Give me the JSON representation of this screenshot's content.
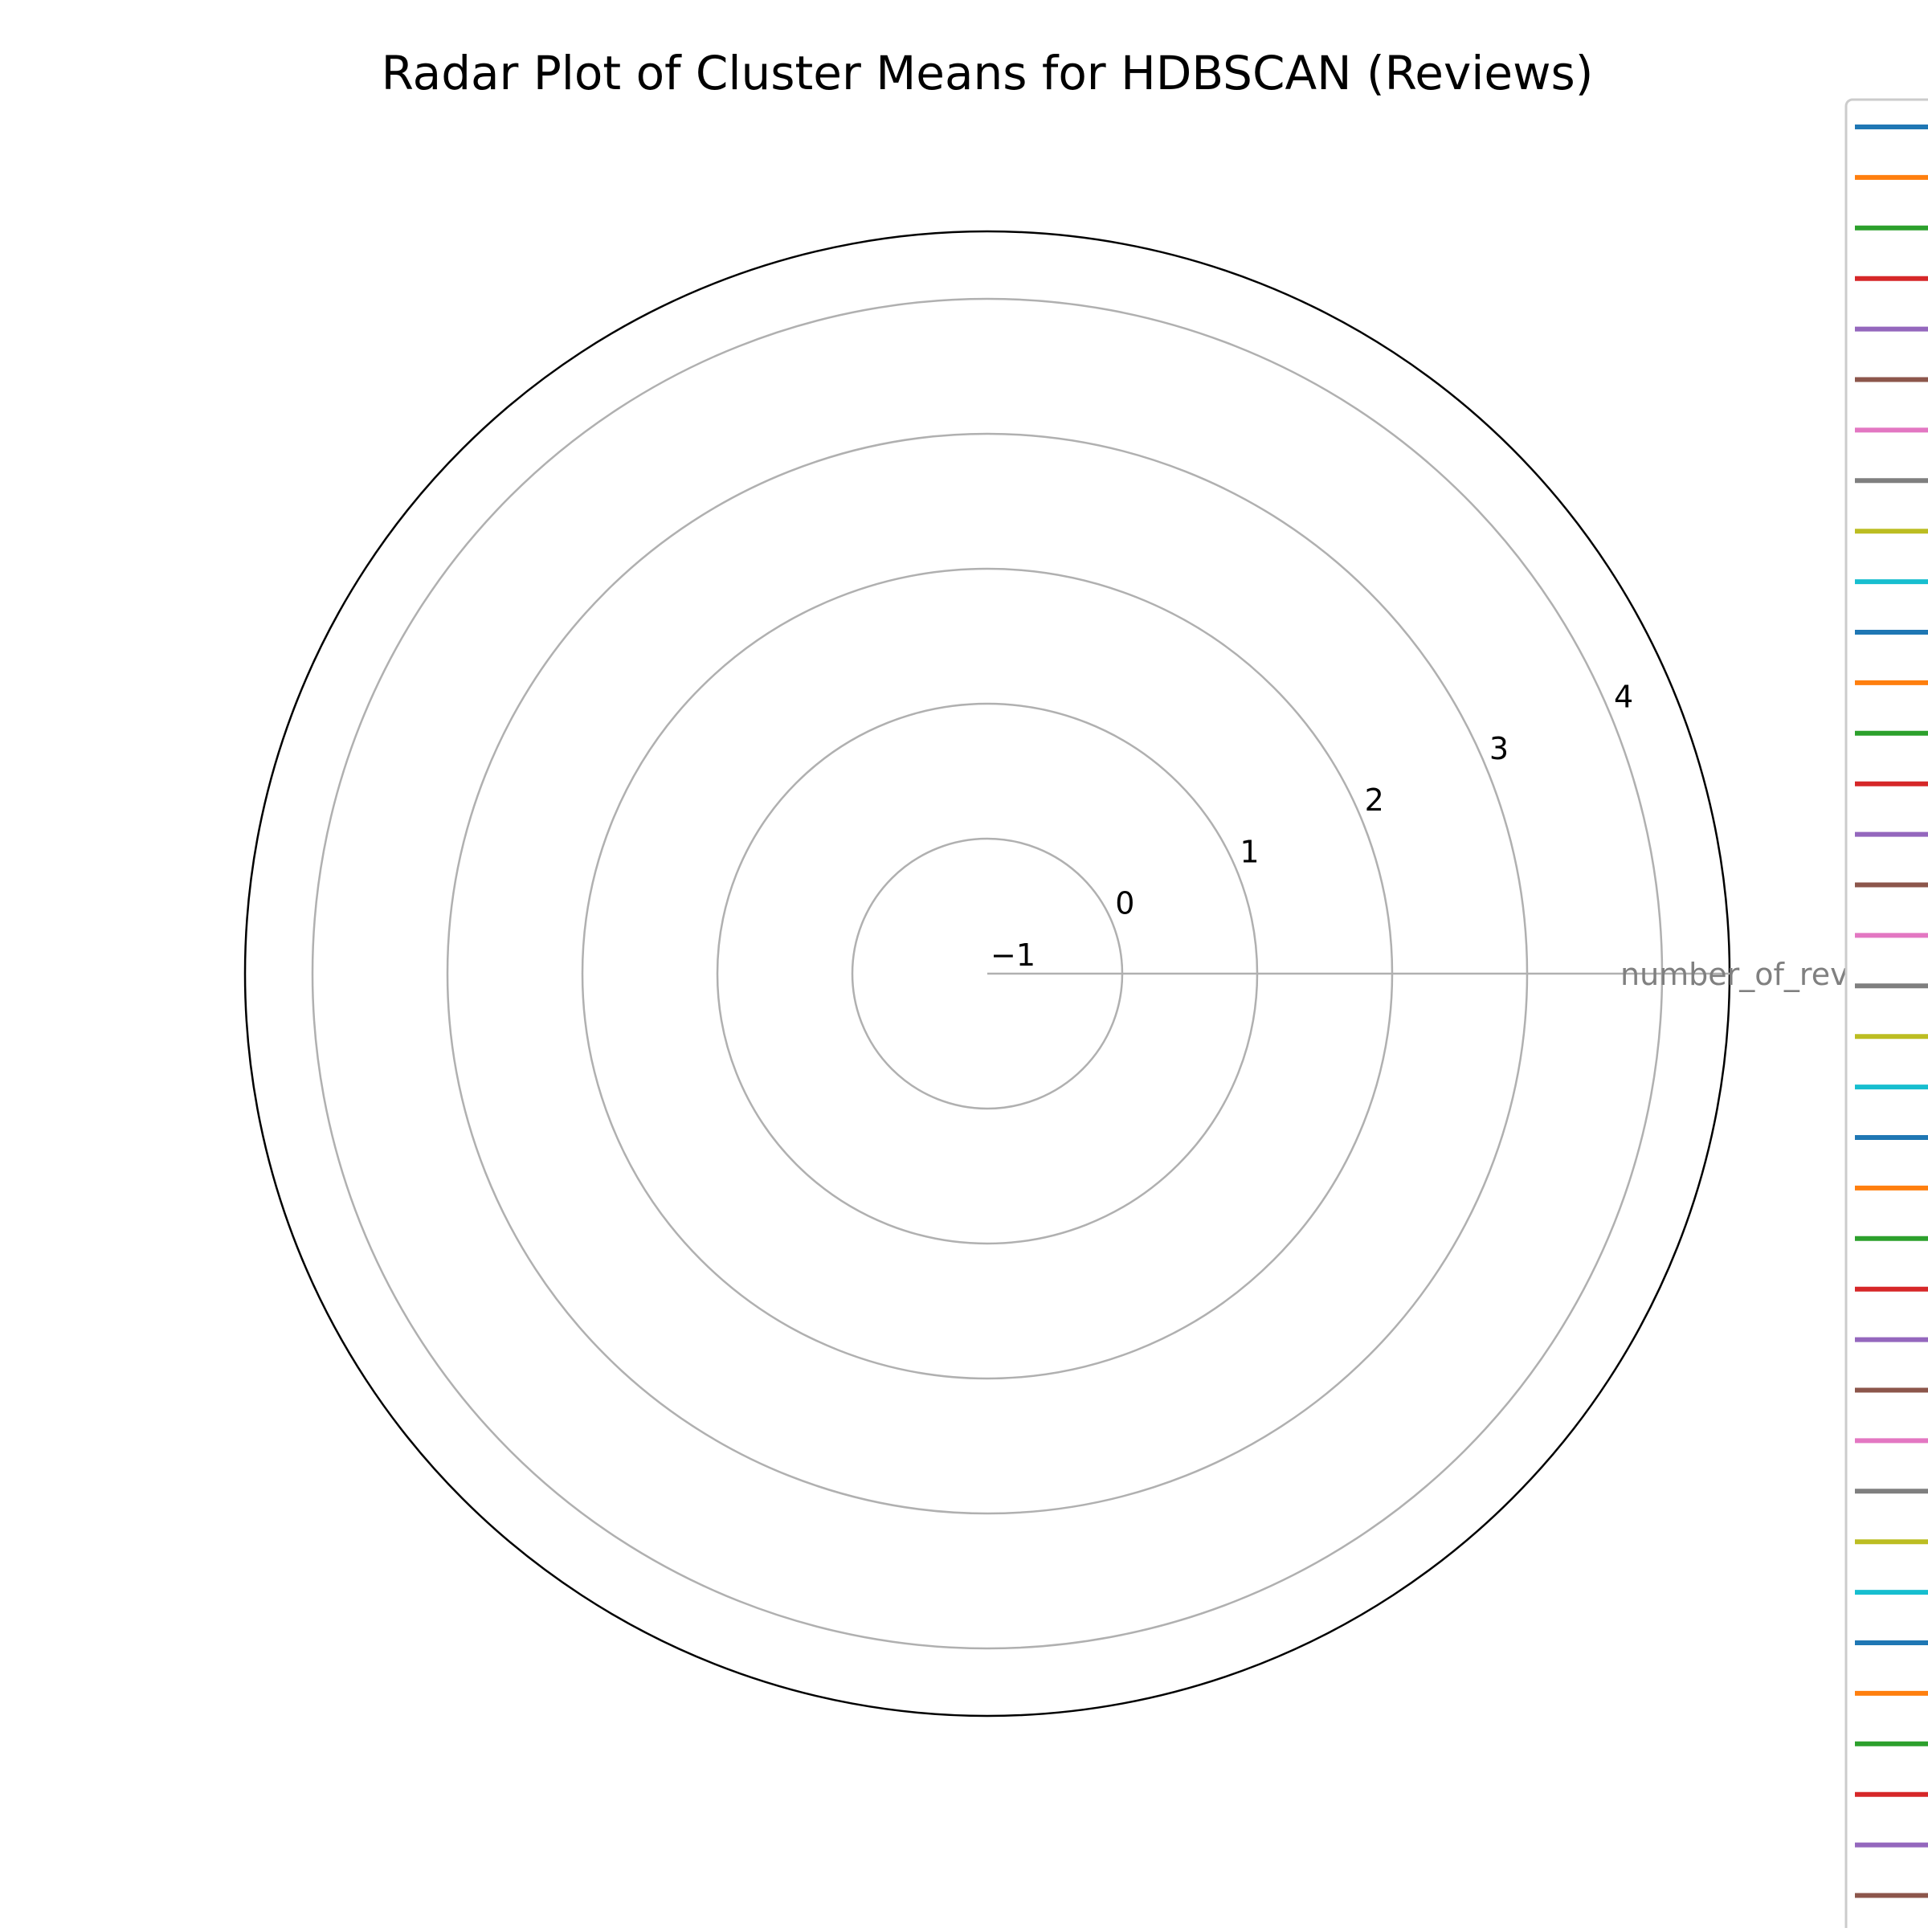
{
  "chart_data": {
    "type": "radar",
    "title": "Radar Plot of Cluster Means for HDBSCAN (Reviews)",
    "axes": [
      "number_of_reviews"
    ],
    "radial_ticks": [
      -1,
      0,
      1,
      2,
      3,
      4
    ],
    "rlim": [
      -1,
      4.5
    ],
    "grid": true,
    "legend_placement": "right, cut off at edge",
    "legend_series_count": 36,
    "palette": [
      "#1f77b4",
      "#ff7f0e",
      "#2ca02c",
      "#d62728",
      "#9467bd",
      "#8c564b",
      "#e377c2",
      "#7f7f7f",
      "#bcbd22",
      "#17becf"
    ],
    "colors": {
      "grid": "#b0b0b0",
      "spine": "#000000",
      "axis_label": "#808080",
      "legend_border": "#cccccc"
    }
  }
}
